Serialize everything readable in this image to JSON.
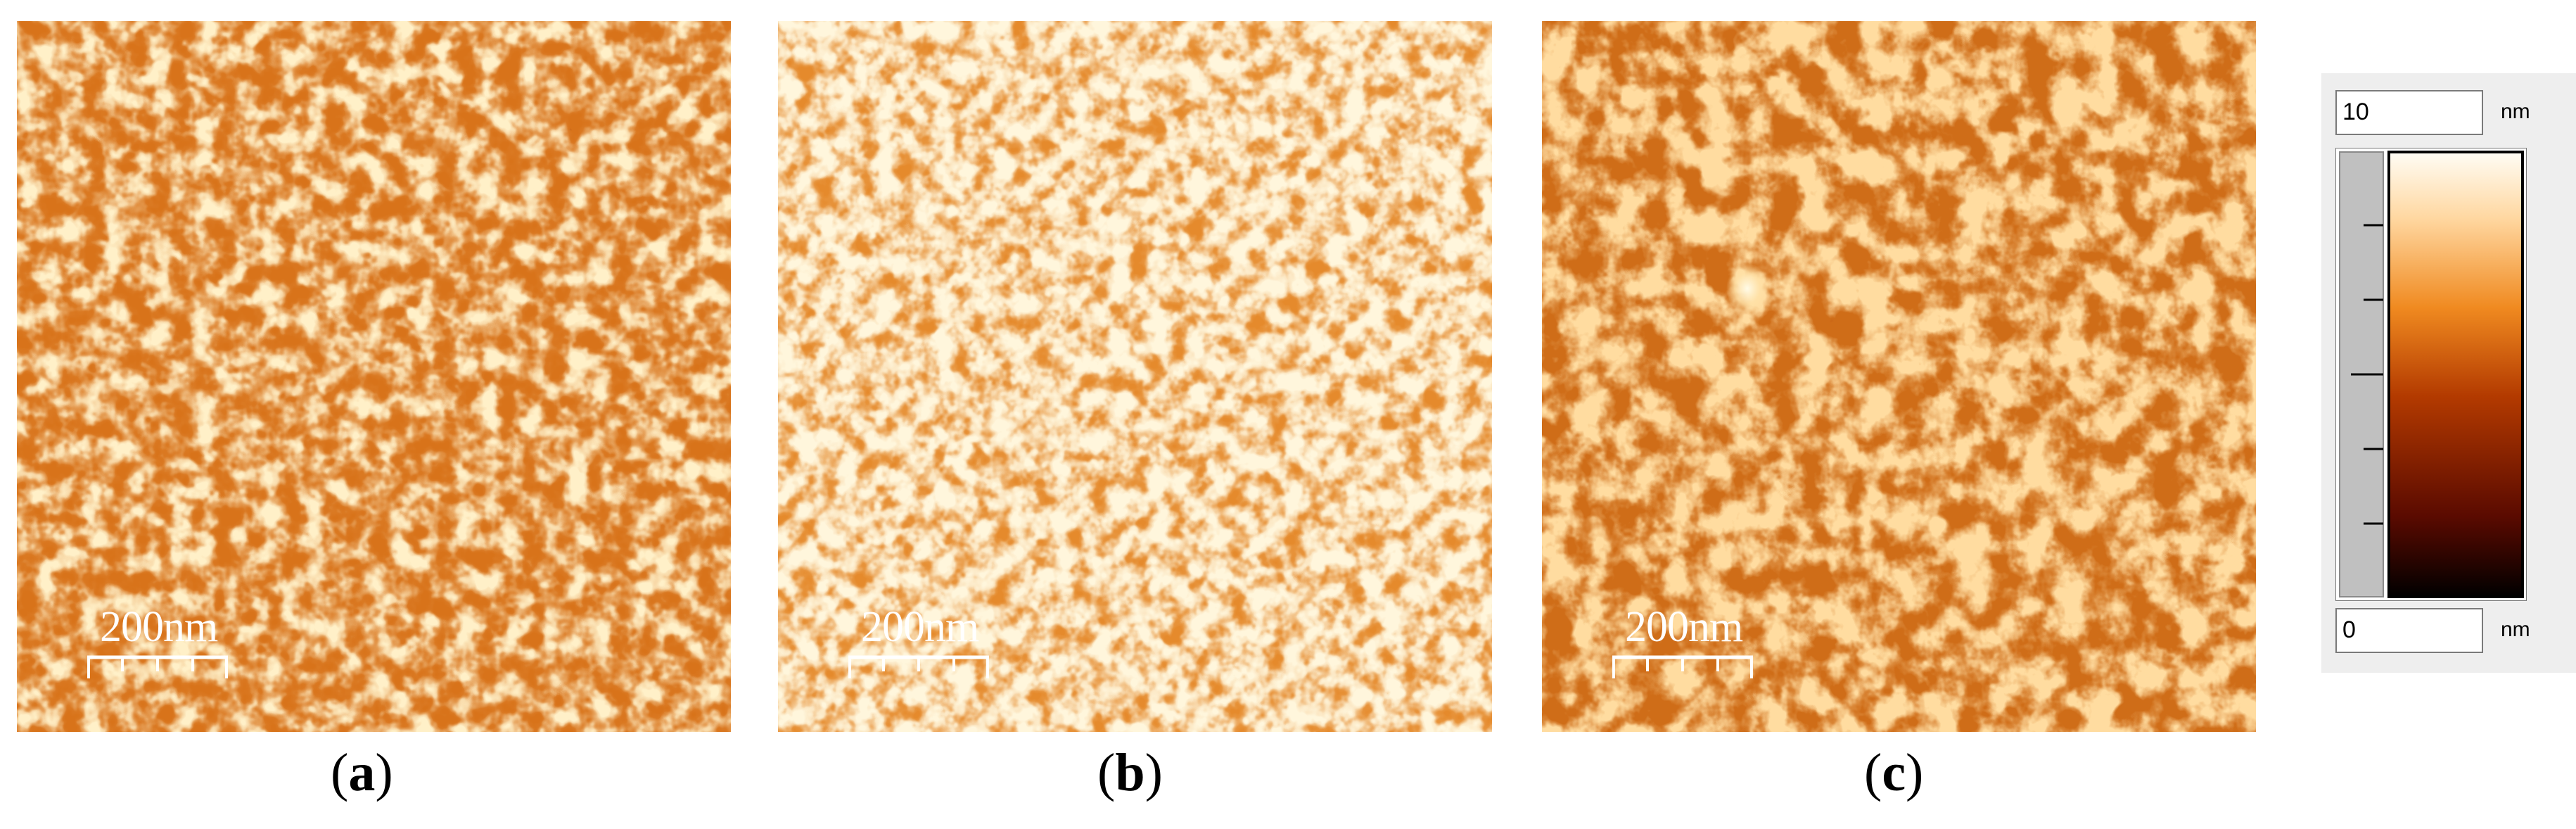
{
  "panels": [
    {
      "id": "a",
      "caption": "a",
      "scale_label": "200nm"
    },
    {
      "id": "b",
      "caption": "b",
      "scale_label": "200nm"
    },
    {
      "id": "c",
      "caption": "c",
      "scale_label": "200nm"
    }
  ],
  "colorscale": {
    "max_value": "10",
    "min_value": "0",
    "unit_max": "nm",
    "unit_min": "nm",
    "colors": [
      "#000000",
      "#5a0a00",
      "#b33a00",
      "#f08a20",
      "#ffd7a0",
      "#fffdf5"
    ]
  },
  "colors": {
    "texture_base": "#d46a10",
    "texture_light": "#ffe9c0"
  }
}
